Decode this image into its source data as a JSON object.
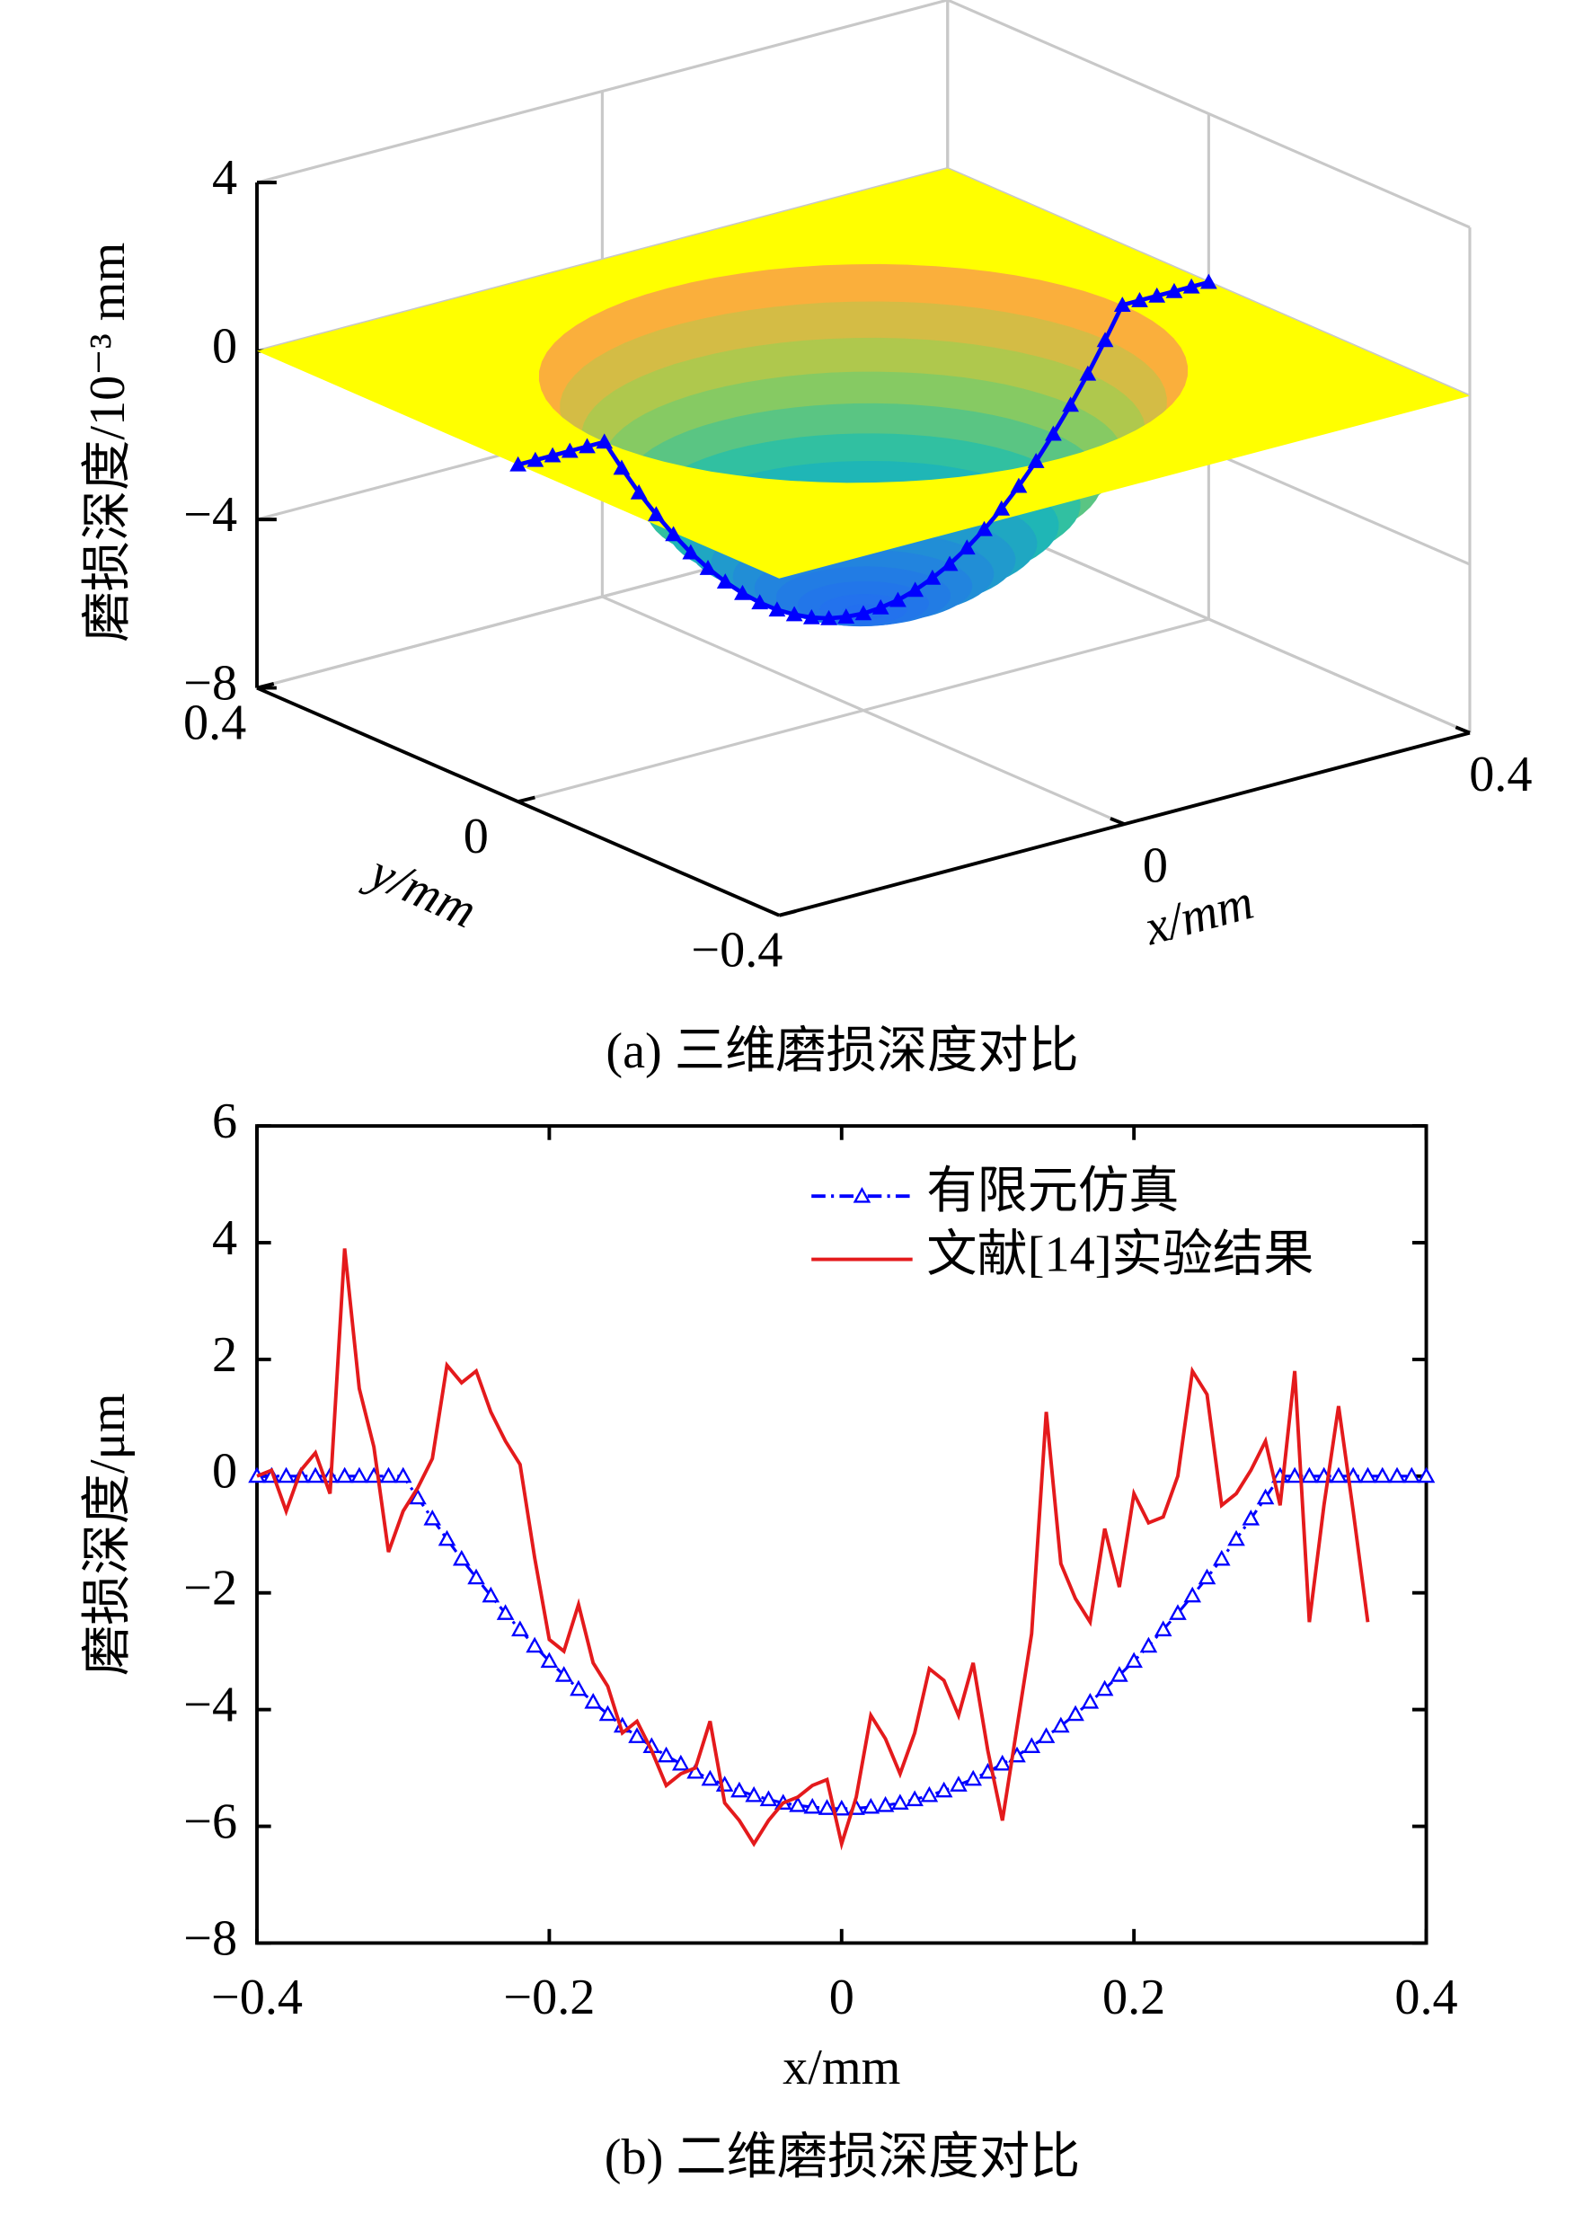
{
  "chart_data": [
    {
      "type": "surface3d",
      "caption": "(a) 三维磨损深度对比",
      "xlabel": "x/mm",
      "ylabel": "y/mm",
      "zlabel": "磨损深度/10⁻³ mm",
      "xlim": [
        -0.4,
        0.4
      ],
      "ylim": [
        -0.4,
        0.4
      ],
      "zlim": [
        -8,
        4
      ],
      "xticks": [
        0,
        0.4
      ],
      "yticks": [
        {
          "value": -0.4,
          "label": "−0.4"
        },
        0,
        0.4
      ],
      "zticks": [
        {
          "value": -8,
          "label": "−8"
        },
        {
          "value": -4,
          "label": "−4"
        },
        0,
        4
      ],
      "x": [
        -0.4,
        -0.38,
        -0.36,
        -0.34,
        -0.32,
        -0.3,
        -0.28,
        -0.26,
        -0.24,
        -0.22,
        -0.2,
        -0.18,
        -0.16,
        -0.14,
        -0.12,
        -0.1,
        -0.08,
        -0.06,
        -0.04,
        -0.02,
        0,
        0.02,
        0.04,
        0.06,
        0.08,
        0.1,
        0.12,
        0.14,
        0.16,
        0.18,
        0.2,
        0.22,
        0.24,
        0.26,
        0.28,
        0.3,
        0.32,
        0.34,
        0.36,
        0.38,
        0.4
      ],
      "values": [
        0,
        0,
        0,
        0,
        0,
        0,
        -0.73,
        -1.42,
        -2.05,
        -2.63,
        -3.17,
        -3.65,
        -4.08,
        -4.46,
        -4.79,
        -5.07,
        -5.29,
        -5.47,
        -5.6,
        -5.67,
        -5.7,
        -5.67,
        -5.6,
        -5.47,
        -5.29,
        -5.07,
        -4.79,
        -4.46,
        -4.08,
        -3.65,
        -3.17,
        -2.63,
        -2.05,
        -1.42,
        -0.73,
        0,
        0,
        0,
        0,
        0,
        0
      ],
      "color": "#0000ff",
      "surface_color": "#ffff00",
      "grid": true
    },
    {
      "type": "line",
      "caption": "(b) 二维磨损深度对比",
      "xlabel": "x/mm",
      "ylabel": "磨损深度/μm",
      "xlim": [
        -0.4,
        0.4
      ],
      "ylim": [
        -8,
        6
      ],
      "xticks": [
        {
          "value": -0.4,
          "label": "−0.4"
        },
        {
          "value": -0.2,
          "label": "−0.2"
        },
        0,
        0.2,
        0.4
      ],
      "yticks": [
        {
          "value": -8,
          "label": "−8"
        },
        {
          "value": -6,
          "label": "−6"
        },
        {
          "value": -4,
          "label": "−4"
        },
        {
          "value": -2,
          "label": "−2"
        },
        0,
        2,
        4,
        6
      ],
      "legend": "upper right",
      "series": [
        {
          "name": "有限元仿真",
          "color": "#0000ff",
          "x": [
            -0.4,
            -0.39,
            -0.38,
            -0.37,
            -0.36,
            -0.35,
            -0.34,
            -0.33,
            -0.32,
            -0.31,
            -0.3,
            -0.29,
            -0.28,
            -0.27,
            -0.26,
            -0.25,
            -0.24,
            -0.23,
            -0.22,
            -0.21,
            -0.2,
            -0.19,
            -0.18,
            -0.17,
            -0.16,
            -0.15,
            -0.14,
            -0.13,
            -0.12,
            -0.11,
            -0.1,
            -0.09,
            -0.08,
            -0.07,
            -0.06,
            -0.05,
            -0.04,
            -0.03,
            -0.02,
            -0.01,
            0,
            0.01,
            0.02,
            0.03,
            0.04,
            0.05,
            0.06,
            0.07,
            0.08,
            0.09,
            0.1,
            0.11,
            0.12,
            0.13,
            0.14,
            0.15,
            0.16,
            0.17,
            0.18,
            0.19,
            0.2,
            0.21,
            0.22,
            0.23,
            0.24,
            0.25,
            0.26,
            0.27,
            0.28,
            0.29,
            0.3,
            0.31,
            0.32,
            0.33,
            0.34,
            0.35,
            0.36,
            0.37,
            0.38,
            0.39,
            0.4
          ],
          "values": [
            0,
            0,
            0,
            0,
            0,
            0,
            0,
            0,
            0,
            0,
            0,
            -0.37,
            -0.73,
            -1.08,
            -1.42,
            -1.74,
            -2.05,
            -2.35,
            -2.63,
            -2.91,
            -3.17,
            -3.41,
            -3.65,
            -3.87,
            -4.08,
            -4.28,
            -4.46,
            -4.63,
            -4.79,
            -4.93,
            -5.07,
            -5.19,
            -5.29,
            -5.39,
            -5.47,
            -5.54,
            -5.6,
            -5.64,
            -5.67,
            -5.69,
            -5.7,
            -5.69,
            -5.67,
            -5.64,
            -5.6,
            -5.54,
            -5.47,
            -5.39,
            -5.29,
            -5.19,
            -5.07,
            -4.93,
            -4.79,
            -4.63,
            -4.46,
            -4.28,
            -4.08,
            -3.87,
            -3.65,
            -3.41,
            -3.17,
            -2.91,
            -2.63,
            -2.35,
            -2.05,
            -1.74,
            -1.42,
            -1.08,
            -0.73,
            -0.37,
            0,
            0,
            0,
            0,
            0,
            0,
            0,
            0,
            0,
            0,
            0
          ]
        },
        {
          "name": "文献[14]实验结果",
          "color": "#e41a1c",
          "x": [
            -0.4,
            -0.39,
            -0.38,
            -0.37,
            -0.36,
            -0.35,
            -0.34,
            -0.33,
            -0.32,
            -0.31,
            -0.3,
            -0.29,
            -0.28,
            -0.27,
            -0.26,
            -0.25,
            -0.24,
            -0.23,
            -0.22,
            -0.21,
            -0.2,
            -0.19,
            -0.18,
            -0.17,
            -0.16,
            -0.15,
            -0.14,
            -0.13,
            -0.12,
            -0.11,
            -0.1,
            -0.09,
            -0.08,
            -0.07,
            -0.06,
            -0.05,
            -0.04,
            -0.03,
            -0.02,
            -0.01,
            0,
            0.01,
            0.02,
            0.03,
            0.04,
            0.05,
            0.06,
            0.07,
            0.08,
            0.09,
            0.1,
            0.11,
            0.12,
            0.13,
            0.14,
            0.15,
            0.16,
            0.17,
            0.18,
            0.19,
            0.2,
            0.21,
            0.22,
            0.23,
            0.24,
            0.25,
            0.26,
            0.27,
            0.28,
            0.29,
            0.3,
            0.31,
            0.32,
            0.33,
            0.34,
            0.35,
            0.36
          ],
          "values": [
            0,
            0.1,
            -0.6,
            0.1,
            0.4,
            -0.3,
            3.9,
            1.5,
            0.5,
            -1.3,
            -0.6,
            -0.2,
            0.3,
            1.9,
            1.6,
            1.8,
            1.1,
            0.6,
            0.2,
            -1.4,
            -2.8,
            -3.0,
            -2.2,
            -3.2,
            -3.6,
            -4.4,
            -4.2,
            -4.7,
            -5.3,
            -5.1,
            -5.0,
            -4.2,
            -5.6,
            -5.9,
            -6.3,
            -5.9,
            -5.6,
            -5.5,
            -5.3,
            -5.2,
            -6.3,
            -5.5,
            -4.1,
            -4.5,
            -5.1,
            -4.4,
            -3.3,
            -3.5,
            -4.1,
            -3.2,
            -4.7,
            -5.9,
            -4.3,
            -2.7,
            1.1,
            -1.5,
            -2.1,
            -2.5,
            -0.9,
            -1.9,
            -0.3,
            -0.8,
            -0.7,
            0.0,
            1.8,
            1.4,
            -0.5,
            -0.3,
            0.1,
            0.6,
            -0.5,
            1.8,
            -2.5,
            -0.5,
            1.2,
            -0.6,
            -2.5
          ]
        }
      ]
    }
  ]
}
